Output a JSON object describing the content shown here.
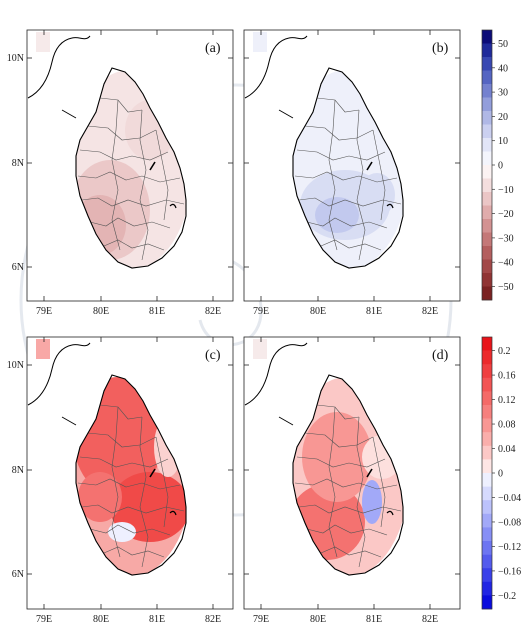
{
  "panels": [
    {
      "id": "a",
      "label": "(a)",
      "pattern": "red-sw"
    },
    {
      "id": "b",
      "label": "(b)",
      "pattern": "blue-center"
    },
    {
      "id": "c",
      "label": "(c)",
      "pattern": "red-strong"
    },
    {
      "id": "d",
      "label": "(d)",
      "pattern": "red-mixed"
    }
  ],
  "axes": {
    "lat_labels": [
      "10N",
      "8N",
      "6N"
    ],
    "lon_labels": [
      "79E",
      "80E",
      "81E",
      "82E"
    ]
  },
  "colorbar_top": {
    "labels": [
      "50",
      "40",
      "30",
      "20",
      "10",
      "0",
      "−10",
      "−20",
      "−30",
      "−40",
      "−50"
    ],
    "colors_top_to_bottom": [
      "#0c0c78",
      "#1f2a9a",
      "#3848b2",
      "#5565c2",
      "#7481cf",
      "#939edb",
      "#b0b8e6",
      "#cbd0f0",
      "#e2e5f7",
      "#f4f5fc",
      "#fcf3f3",
      "#f4dede",
      "#ebc6c6",
      "#e0acac",
      "#d39292",
      "#c47878",
      "#b45f5f",
      "#a24848",
      "#903434",
      "#7a2222"
    ]
  },
  "colorbar_bottom": {
    "labels": [
      "0.2",
      "0.16",
      "0.12",
      "0.08",
      "0.04",
      "0",
      "−0.04",
      "−0.08",
      "−0.12",
      "−0.16",
      "−0.2"
    ],
    "colors_top_to_bottom": [
      "#e8141a",
      "#ec2a2c",
      "#ef3f40",
      "#f25454",
      "#f46a68",
      "#f6807e",
      "#f89794",
      "#faaeab",
      "#fcc8c6",
      "#fee6e5",
      "#eef0ff",
      "#d6dafd",
      "#bcc2fb",
      "#a2a9f8",
      "#878ff5",
      "#6d75f1",
      "#545bed",
      "#3a40e9",
      "#2125e3",
      "#0a0cdd"
    ]
  }
}
